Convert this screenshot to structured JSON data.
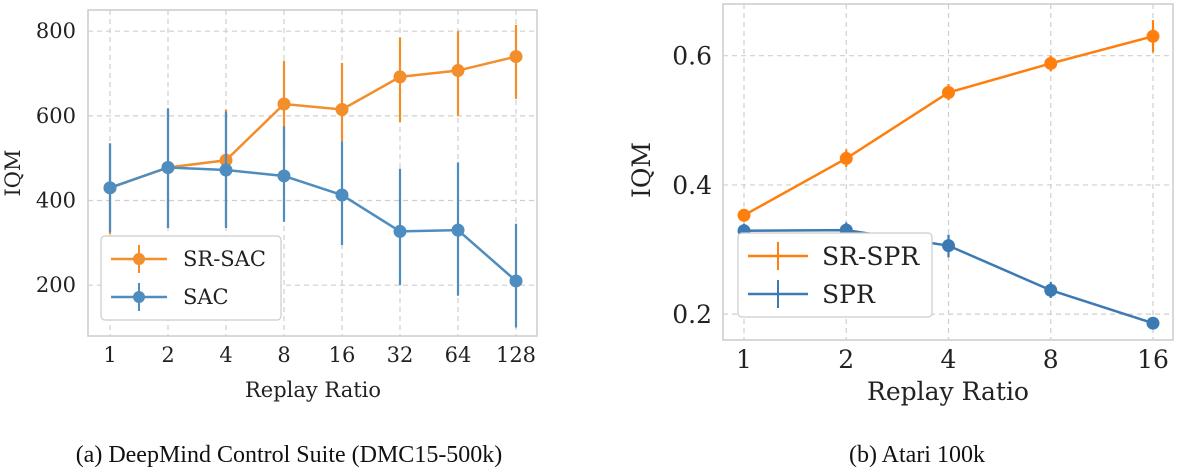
{
  "chart_data": [
    {
      "type": "line",
      "caption": "(a) DeepMind Control Suite (DMC15-500k)",
      "xlabel": "Replay Ratio",
      "ylabel": "IQM",
      "categories": [
        "1",
        "2",
        "4",
        "8",
        "16",
        "32",
        "64",
        "128"
      ],
      "yticks": [
        200,
        400,
        600,
        800
      ],
      "ylim": [
        80,
        850
      ],
      "grid": true,
      "legend_position": "lower-left",
      "series": [
        {
          "name": "SR-SAC",
          "color": "#f28e2b",
          "values": [
            430,
            478,
            495,
            628,
            615,
            692,
            707,
            740
          ],
          "lower": [
            320,
            335,
            340,
            520,
            540,
            585,
            600,
            640
          ],
          "upper": [
            535,
            615,
            615,
            730,
            725,
            785,
            800,
            815
          ]
        },
        {
          "name": "SAC",
          "color": "#4e8dbf",
          "values": [
            430,
            478,
            472,
            458,
            413,
            327,
            330,
            210
          ],
          "lower": [
            325,
            335,
            335,
            350,
            295,
            200,
            175,
            100
          ],
          "upper": [
            535,
            618,
            610,
            575,
            540,
            475,
            490,
            345
          ]
        }
      ]
    },
    {
      "type": "line",
      "caption": "(b) Atari 100k",
      "xlabel": "Replay Ratio",
      "ylabel": "IQM",
      "categories": [
        "1",
        "2",
        "4",
        "8",
        "16"
      ],
      "yticks": [
        "0.2",
        "0.4",
        "0.6"
      ],
      "ylim": [
        0.16,
        0.68
      ],
      "grid": true,
      "legend_position": "lower-left",
      "series": [
        {
          "name": "SR-SPR",
          "color": "#ff7f0e",
          "values": [
            0.353,
            0.441,
            0.543,
            0.588,
            0.63
          ],
          "lower": [
            0.343,
            0.428,
            0.531,
            0.576,
            0.605
          ],
          "upper": [
            0.363,
            0.455,
            0.556,
            0.6,
            0.655
          ]
        },
        {
          "name": "SPR",
          "color": "#3c7ab3",
          "values": [
            0.329,
            0.33,
            0.306,
            0.237,
            0.186
          ],
          "lower": [
            0.318,
            0.318,
            0.288,
            0.225,
            0.18
          ],
          "upper": [
            0.34,
            0.342,
            0.323,
            0.25,
            0.192
          ]
        }
      ]
    }
  ]
}
